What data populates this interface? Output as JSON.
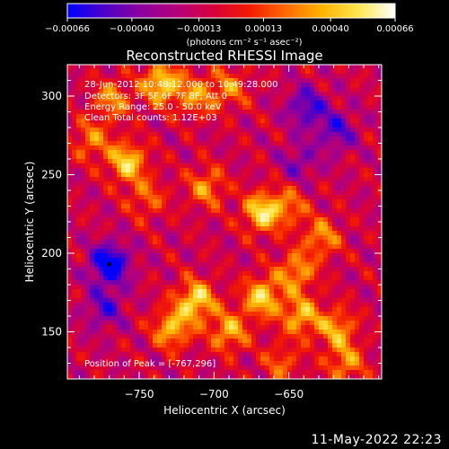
{
  "chart_data": {
    "type": "heatmap",
    "title": "Reconstructed RHESSI Image",
    "xlabel": "Heliocentric X (arcsec)",
    "ylabel": "Heliocentric Y (arcsec)",
    "xlim": [
      -798,
      -588
    ],
    "ylim": [
      120,
      320
    ],
    "xticks": [
      -750,
      -700,
      -650
    ],
    "yticks": [
      150,
      200,
      250,
      300
    ],
    "colorbar": {
      "title": "(photons cm⁻² s⁻¹ asec⁻²)",
      "range": [
        -0.00066,
        0.00066
      ],
      "tick_labels": [
        "−0.00066",
        "−0.00040",
        "−0.00013",
        "0.00013",
        "0.00040",
        "0.00066"
      ],
      "tick_values": [
        -0.00066,
        -0.0004,
        -0.00013,
        0.00013,
        0.0004,
        0.00066
      ],
      "stops": [
        "#0000ff",
        "#4b00c8",
        "#8c00a0",
        "#b4007a",
        "#d8003a",
        "#f21a00",
        "#ff6a00",
        "#ffb400",
        "#ffe650",
        "#ffffff"
      ]
    },
    "annotations": [
      "28-Jun-2012 10:48:12.000 to 10:49:28.000",
      "Detectors: 3F 5F 6F 7F 8F, Att 0",
      "Energy Range: 25.0 - 50.0 keV",
      "Clean Total counts: 1.12E+03"
    ],
    "peak_label": "Position of Peak = [-767,296]",
    "peak": [
      -767,
      296
    ],
    "negative_marker": [
      -770,
      193
    ],
    "sources": [
      {
        "x": -735,
        "y": 308,
        "a": 0.00062
      },
      {
        "x": -712,
        "y": 300,
        "a": 0.0004
      },
      {
        "x": -768,
        "y": 298,
        "a": 0.0004
      },
      {
        "x": -758,
        "y": 258,
        "a": 0.00058
      },
      {
        "x": -782,
        "y": 272,
        "a": 0.00036
      },
      {
        "x": -745,
        "y": 235,
        "a": 0.0003
      },
      {
        "x": -705,
        "y": 242,
        "a": 0.0004
      },
      {
        "x": -690,
        "y": 305,
        "a": 0.00035
      },
      {
        "x": -668,
        "y": 226,
        "a": 0.0006
      },
      {
        "x": -650,
        "y": 230,
        "a": 0.00032
      },
      {
        "x": -628,
        "y": 210,
        "a": 0.0004
      },
      {
        "x": -645,
        "y": 188,
        "a": 0.00045
      },
      {
        "x": -712,
        "y": 170,
        "a": 0.00062
      },
      {
        "x": -728,
        "y": 152,
        "a": 0.00052
      },
      {
        "x": -690,
        "y": 150,
        "a": 0.00048
      },
      {
        "x": -668,
        "y": 172,
        "a": 0.00058
      },
      {
        "x": -642,
        "y": 160,
        "a": 0.0005
      },
      {
        "x": -618,
        "y": 152,
        "a": 0.00045
      },
      {
        "x": -612,
        "y": 130,
        "a": 0.0004
      },
      {
        "x": -655,
        "y": 130,
        "a": 0.0003
      },
      {
        "x": -770,
        "y": 193,
        "a": -0.00066
      },
      {
        "x": -773,
        "y": 165,
        "a": -0.00034
      },
      {
        "x": -638,
        "y": 293,
        "a": -0.00042
      },
      {
        "x": -618,
        "y": 278,
        "a": -0.00036
      },
      {
        "x": -643,
        "y": 258,
        "a": -0.00026
      }
    ]
  },
  "footer": {
    "date": "11-May-2022 22:23"
  }
}
